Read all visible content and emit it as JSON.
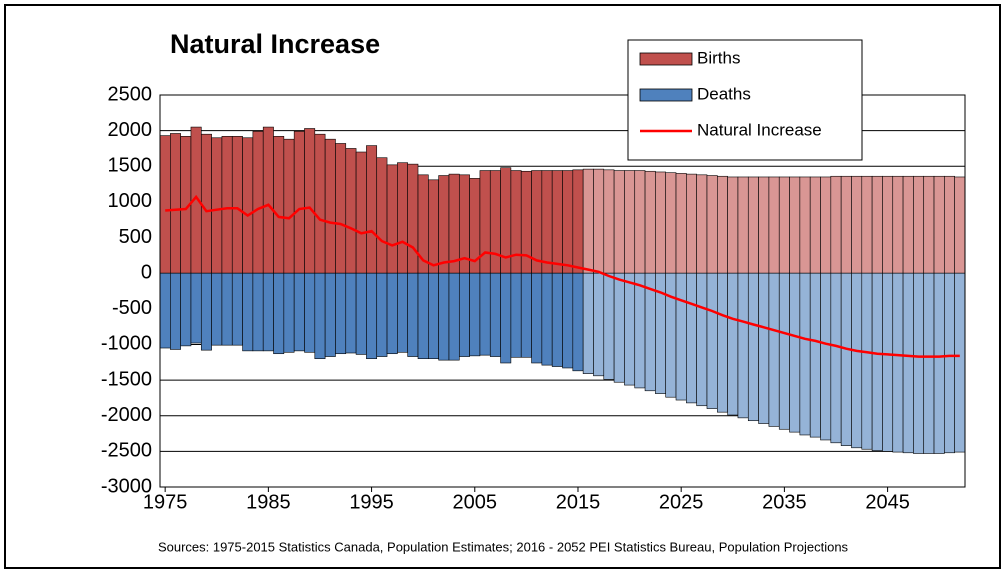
{
  "chart_data": {
    "type": "bar",
    "title": "Natural Increase",
    "source": "Sources: 1975-2015 Statistics Canada, Population Estimates; 2016 - 2052 PEI Statistics Bureau, Population Projections",
    "x": [
      1975,
      1976,
      1977,
      1978,
      1979,
      1980,
      1981,
      1982,
      1983,
      1984,
      1985,
      1986,
      1987,
      1988,
      1989,
      1990,
      1991,
      1992,
      1993,
      1994,
      1995,
      1996,
      1997,
      1998,
      1999,
      2000,
      2001,
      2002,
      2003,
      2004,
      2005,
      2006,
      2007,
      2008,
      2009,
      2010,
      2011,
      2012,
      2013,
      2014,
      2015,
      2016,
      2017,
      2018,
      2019,
      2020,
      2021,
      2022,
      2023,
      2024,
      2025,
      2026,
      2027,
      2028,
      2029,
      2030,
      2031,
      2032,
      2033,
      2034,
      2035,
      2036,
      2037,
      2038,
      2039,
      2040,
      2041,
      2042,
      2043,
      2044,
      2045,
      2046,
      2047,
      2048,
      2049,
      2050,
      2051,
      2052
    ],
    "xlim": [
      1974.5,
      2052.5
    ],
    "xticks": [
      1975,
      1985,
      1995,
      2005,
      2015,
      2025,
      2035,
      2045
    ],
    "ylim": [
      -3000,
      2500
    ],
    "yticks": [
      -3000,
      -2500,
      -2000,
      -1500,
      -1000,
      -500,
      0,
      500,
      1000,
      1500,
      2000,
      2500
    ],
    "grid": true,
    "projection_start": 2016,
    "series": [
      {
        "name": "Births",
        "type": "bar",
        "color": "#c0504d",
        "projected_color": "#d99694",
        "values": [
          1930,
          1960,
          1920,
          2050,
          1950,
          1900,
          1920,
          1920,
          1900,
          1990,
          2050,
          1920,
          1880,
          1990,
          2030,
          1950,
          1880,
          1820,
          1750,
          1700,
          1790,
          1620,
          1520,
          1550,
          1530,
          1380,
          1310,
          1370,
          1390,
          1380,
          1330,
          1440,
          1440,
          1480,
          1440,
          1430,
          1440,
          1440,
          1440,
          1440,
          1450,
          1460,
          1460,
          1450,
          1440,
          1440,
          1440,
          1430,
          1420,
          1410,
          1400,
          1390,
          1380,
          1370,
          1360,
          1350,
          1350,
          1350,
          1350,
          1350,
          1350,
          1350,
          1350,
          1350,
          1350,
          1360,
          1360,
          1360,
          1360,
          1360,
          1360,
          1360,
          1360,
          1360,
          1360,
          1360,
          1360,
          1350
        ]
      },
      {
        "name": "Deaths",
        "type": "bar",
        "color": "#4f81bd",
        "projected_color": "#95b3d7",
        "values": [
          -1050,
          -1070,
          -1020,
          -980,
          -1080,
          -1010,
          -1010,
          -1010,
          -1090,
          -1090,
          -1090,
          -1130,
          -1110,
          -1090,
          -1110,
          -1200,
          -1170,
          -1130,
          -1120,
          -1140,
          -1200,
          -1170,
          -1130,
          -1110,
          -1170,
          -1200,
          -1200,
          -1220,
          -1220,
          -1170,
          -1160,
          -1150,
          -1170,
          -1260,
          -1180,
          -1180,
          -1260,
          -1290,
          -1310,
          -1330,
          -1370,
          -1410,
          -1440,
          -1490,
          -1530,
          -1570,
          -1610,
          -1650,
          -1690,
          -1740,
          -1780,
          -1820,
          -1860,
          -1900,
          -1950,
          -1990,
          -2030,
          -2070,
          -2110,
          -2150,
          -2190,
          -2230,
          -2270,
          -2300,
          -2340,
          -2380,
          -2420,
          -2450,
          -2470,
          -2490,
          -2500,
          -2510,
          -2520,
          -2530,
          -2530,
          -2530,
          -2520,
          -2510
        ]
      },
      {
        "name": "Natural Increase",
        "type": "line",
        "color": "#ff0000",
        "values": [
          880,
          890,
          900,
          1070,
          870,
          890,
          910,
          910,
          810,
          900,
          960,
          790,
          770,
          900,
          920,
          750,
          710,
          690,
          630,
          560,
          590,
          450,
          390,
          440,
          360,
          180,
          110,
          150,
          170,
          210,
          170,
          290,
          270,
          220,
          260,
          250,
          180,
          150,
          130,
          110,
          80,
          50,
          20,
          -40,
          -90,
          -130,
          -170,
          -220,
          -270,
          -330,
          -380,
          -430,
          -480,
          -530,
          -590,
          -640,
          -680,
          -720,
          -760,
          -800,
          -840,
          -880,
          -920,
          -950,
          -990,
          -1020,
          -1060,
          -1090,
          -1110,
          -1130,
          -1140,
          -1150,
          -1160,
          -1170,
          -1170,
          -1170,
          -1160,
          -1160
        ]
      }
    ]
  }
}
